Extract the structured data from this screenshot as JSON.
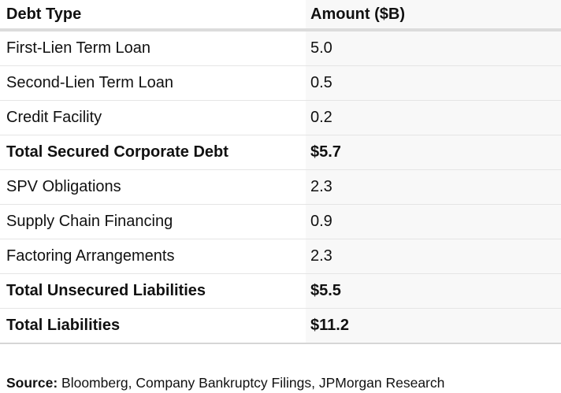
{
  "chart_data": {
    "type": "table",
    "columns": [
      "Debt Type",
      "Amount ($B)"
    ],
    "rows": [
      [
        "First-Lien Term Loan",
        "5.0"
      ],
      [
        "Second-Lien Term Loan",
        "0.5"
      ],
      [
        "Credit Facility",
        "0.2"
      ],
      [
        "Total Secured Corporate Debt",
        "$5.7"
      ],
      [
        "SPV Obligations",
        "2.3"
      ],
      [
        "Supply Chain Financing",
        "0.9"
      ],
      [
        "Factoring Arrangements",
        "2.3"
      ],
      [
        "Total Unsecured Liabilities",
        "$5.5"
      ],
      [
        "Total Liabilities",
        "$11.2"
      ]
    ],
    "total_row_indices": [
      3,
      7,
      8
    ],
    "source": "Source: Bloomberg, Company Bankruptcy Filings, JPMorgan Research"
  },
  "source": {
    "label": "Source:",
    "text": "Bloomberg, Company Bankruptcy Filings, JPMorgan Research"
  },
  "colors": {
    "text": "#111111",
    "amount_column_bg": "#f8f8f8",
    "row_divider": "#e5e5e5",
    "header_rule": "#dcdcdc",
    "bottom_rule": "#d6d6d6"
  }
}
